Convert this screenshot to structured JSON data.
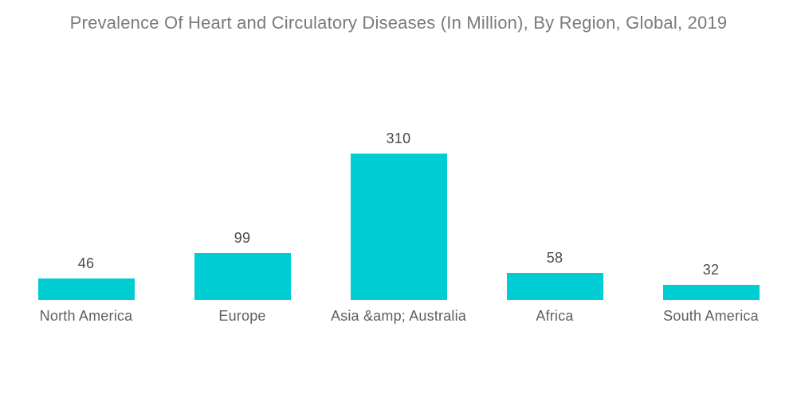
{
  "title": "Prevalence Of Heart and Circulatory Diseases (In Million), By Region, Global, 2019",
  "colors": {
    "background": "#FFFFFF",
    "bar": "#00CDD3",
    "title_text": "#7A7A7A",
    "value_text": "#4A4A4A",
    "category_text": "#5F5F5F"
  },
  "chart_data": {
    "type": "bar",
    "title": "Prevalence Of Heart and Circulatory Diseases (In Million), By Region, Global, 2019",
    "categories": [
      "North America",
      "Europe",
      "Asia &amp; Australia",
      "Africa",
      "South America"
    ],
    "values": [
      46,
      99,
      310,
      58,
      32
    ],
    "xlabel": "",
    "ylabel": "",
    "ylim": [
      0,
      310
    ],
    "grid": false,
    "legend": false,
    "axes_shown": false,
    "value_labels_shown": true,
    "orientation": "vertical"
  }
}
